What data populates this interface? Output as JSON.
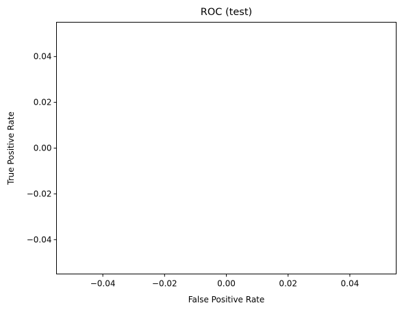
{
  "chart_data": {
    "type": "line",
    "title": "ROC (test)",
    "xlabel": "False Positive Rate",
    "ylabel": "True Positive Rate",
    "xlim": [
      -0.055,
      0.055
    ],
    "ylim": [
      -0.055,
      0.055
    ],
    "xticks": [
      -0.04,
      -0.02,
      0.0,
      0.02,
      0.04
    ],
    "yticks": [
      -0.04,
      -0.02,
      0.0,
      0.02,
      0.04
    ],
    "xtick_labels": [
      "−0.04",
      "−0.02",
      "0.00",
      "0.02",
      "0.04"
    ],
    "ytick_labels": [
      "−0.04",
      "−0.02",
      "0.00",
      "0.02",
      "0.04"
    ],
    "series": [],
    "grid": false,
    "legend": "none"
  }
}
